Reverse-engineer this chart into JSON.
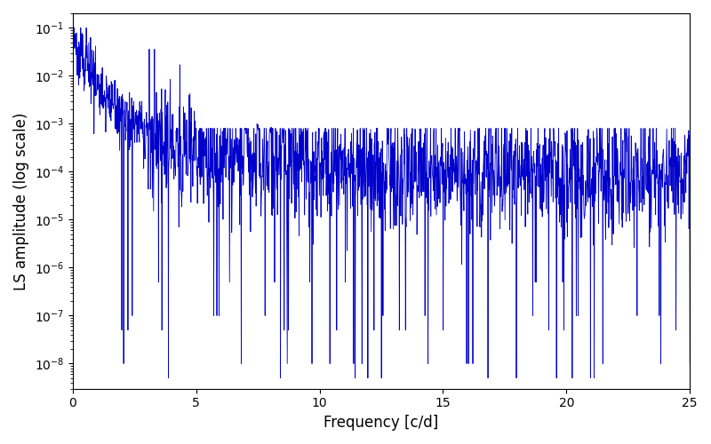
{
  "title": "",
  "xlabel": "Frequency [c/d]",
  "ylabel": "LS amplitude (log scale)",
  "line_color": "#0000cc",
  "line_width": 0.6,
  "xlim": [
    0,
    25
  ],
  "ylim_low": 3e-09,
  "ylim_high": 0.2,
  "background_color": "#ffffff",
  "figsize": [
    8.0,
    5.0
  ],
  "dpi": 100,
  "seed": 7777,
  "n_points": 2000,
  "freq_max": 25.0
}
